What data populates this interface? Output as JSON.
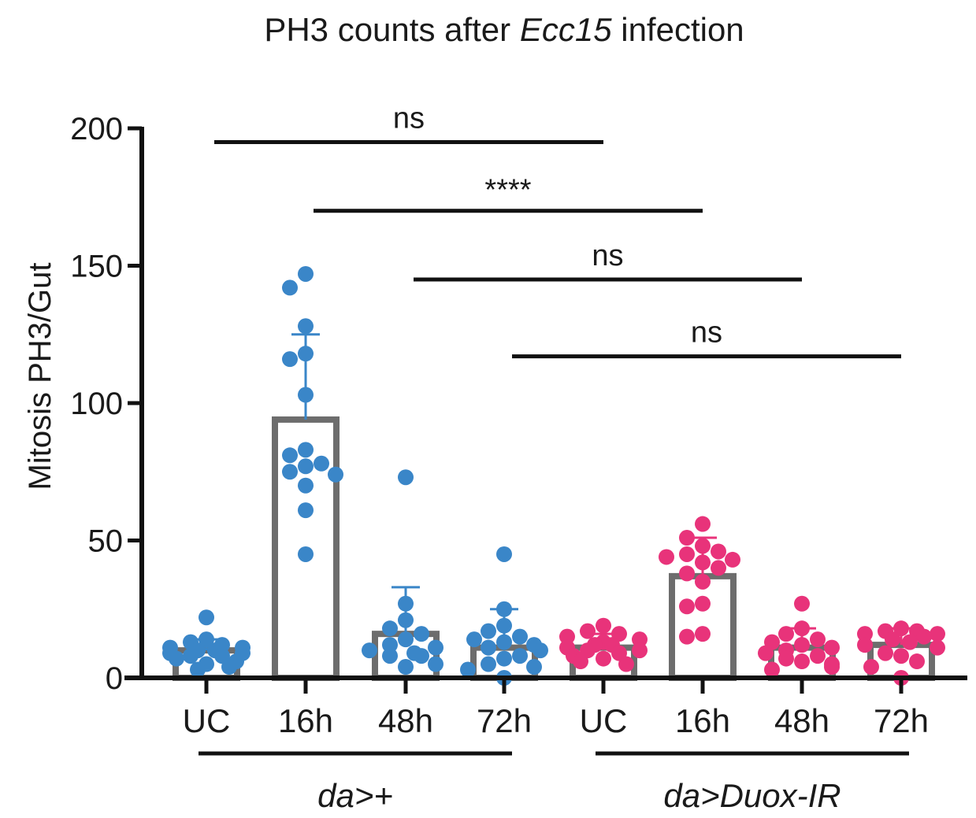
{
  "chart_data": {
    "type": "bar",
    "title": {
      "prefix": "PH3 counts after ",
      "italic": "Ecc15",
      "suffix": " infection"
    },
    "ylabel": "Mitosis PH3/Gut",
    "xlabel": "",
    "ylim": [
      0,
      200
    ],
    "yticks": [
      0,
      50,
      100,
      150,
      200
    ],
    "grid": false,
    "categories": [
      "UC",
      "16h",
      "48h",
      "72h",
      "UC",
      "16h",
      "48h",
      "72h"
    ],
    "colors": {
      "da_plus": "#3a86c8",
      "da_duox": "#e8337a",
      "bar": "#6d6d6d",
      "axis": "#111111"
    },
    "groups": [
      {
        "label": "da>+",
        "members": [
          0,
          1,
          2,
          3
        ]
      },
      {
        "label": "da>Duox-IR",
        "members": [
          4,
          5,
          6,
          7
        ]
      }
    ],
    "bars": [
      {
        "category": "UC",
        "group": "da_plus",
        "mean": 10,
        "sd": 4,
        "points": [
          22,
          14,
          13,
          12,
          11,
          11,
          10,
          10,
          9,
          9,
          8,
          8,
          7,
          6,
          5,
          4,
          3
        ]
      },
      {
        "category": "16h",
        "group": "da_plus",
        "mean": 94,
        "sd": 31,
        "points": [
          147,
          142,
          128,
          118,
          116,
          103,
          83,
          81,
          78,
          77,
          75,
          74,
          70,
          61,
          45
        ]
      },
      {
        "category": "48h",
        "group": "da_plus",
        "mean": 16,
        "sd": 17,
        "points": [
          73,
          27,
          21,
          18,
          16,
          14,
          12,
          11,
          10,
          9,
          8,
          8,
          5,
          4
        ]
      },
      {
        "category": "72h",
        "group": "da_plus",
        "mean": 11,
        "sd": 14,
        "points": [
          45,
          25,
          19,
          17,
          15,
          14,
          13,
          12,
          11,
          10,
          8,
          7,
          5,
          4,
          3,
          0
        ]
      },
      {
        "category": "UC",
        "group": "da_duox",
        "mean": 11,
        "sd": 5,
        "points": [
          19,
          17,
          16,
          15,
          14,
          13,
          12,
          12,
          11,
          10,
          10,
          9,
          8,
          7,
          6,
          5
        ]
      },
      {
        "category": "16h",
        "group": "da_duox",
        "mean": 37,
        "sd": 14,
        "points": [
          56,
          51,
          48,
          46,
          45,
          44,
          43,
          42,
          40,
          38,
          35,
          27,
          26,
          16,
          15
        ]
      },
      {
        "category": "48h",
        "group": "da_duox",
        "mean": 11,
        "sd": 7,
        "points": [
          27,
          18,
          16,
          14,
          13,
          12,
          11,
          10,
          9,
          8,
          7,
          6,
          5,
          4,
          3
        ]
      },
      {
        "category": "72h",
        "group": "da_duox",
        "mean": 12,
        "sd": 6,
        "points": [
          18,
          17,
          17,
          16,
          16,
          15,
          14,
          13,
          12,
          11,
          9,
          8,
          6,
          4,
          0
        ]
      }
    ],
    "comparisons": [
      {
        "from": 0,
        "to": 4,
        "y": 195,
        "label": "ns"
      },
      {
        "from": 1,
        "to": 5,
        "y": 170,
        "label": "****"
      },
      {
        "from": 2,
        "to": 6,
        "y": 145,
        "label": "ns"
      },
      {
        "from": 3,
        "to": 7,
        "y": 117,
        "label": "ns"
      }
    ]
  }
}
